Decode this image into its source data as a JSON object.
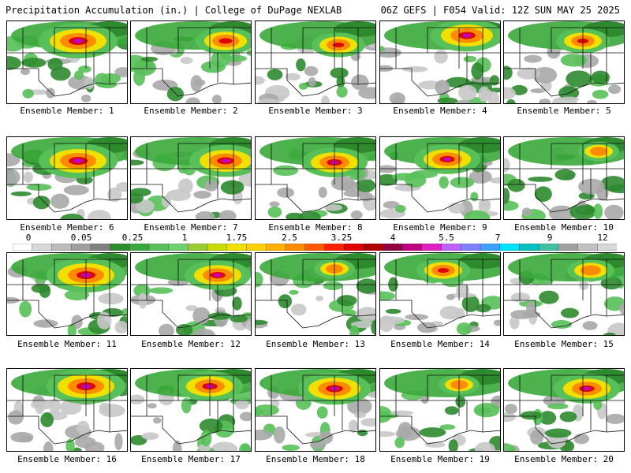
{
  "header": {
    "title": "Precipitation Accumulation (in.) | College of DuPage NEXLAB",
    "run_info": "06Z GEFS | F054 Valid: 12Z SUN MAY 25 2025"
  },
  "colorbar": {
    "tick_labels": [
      "0",
      "0.05",
      "0.25",
      "1",
      "1.75",
      "2.5",
      "3.25",
      "4",
      "5.5",
      "7",
      "9",
      "12"
    ],
    "colors": [
      "#ffffff",
      "#d8d8d8",
      "#bcbcbc",
      "#a0a0a0",
      "#808080",
      "#2d8a2d",
      "#3aa83a",
      "#58c058",
      "#6ed06e",
      "#9acd32",
      "#c8dc00",
      "#f0e000",
      "#ffd000",
      "#ffb000",
      "#ff8c00",
      "#ff5a00",
      "#ff2000",
      "#e00000",
      "#b00000",
      "#900040",
      "#c00080",
      "#e020c0",
      "#c060ff",
      "#8080ff",
      "#40a0ff",
      "#00e0ff",
      "#00c0c0",
      "#40c0a0",
      "#a0a0a0",
      "#c0c0c0",
      "#d8d8d8"
    ]
  },
  "members": [
    {
      "label": "Ensemble Member: 1"
    },
    {
      "label": "Ensemble Member: 2"
    },
    {
      "label": "Ensemble Member: 3"
    },
    {
      "label": "Ensemble Member: 4"
    },
    {
      "label": "Ensemble Member: 5"
    },
    {
      "label": "Ensemble Member: 6"
    },
    {
      "label": "Ensemble Member: 7"
    },
    {
      "label": "Ensemble Member: 8"
    },
    {
      "label": "Ensemble Member: 9"
    },
    {
      "label": "Ensemble Member: 10"
    },
    {
      "label": "Ensemble Member: 11"
    },
    {
      "label": "Ensemble Member: 12"
    },
    {
      "label": "Ensemble Member: 13"
    },
    {
      "label": "Ensemble Member: 14"
    },
    {
      "label": "Ensemble Member: 15"
    },
    {
      "label": "Ensemble Member: 16"
    },
    {
      "label": "Ensemble Member: 17"
    },
    {
      "label": "Ensemble Member: 18"
    },
    {
      "label": "Ensemble Member: 19"
    },
    {
      "label": "Ensemble Member: 20"
    }
  ]
}
